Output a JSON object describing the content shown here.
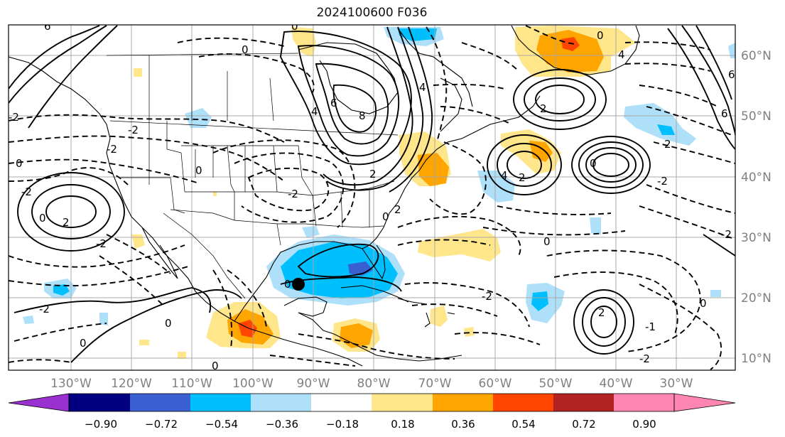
{
  "title": "2024100600 F036",
  "map": {
    "longitude_labels": [
      "130°W",
      "120°W",
      "110°W",
      "100°W",
      "90°W",
      "80°W",
      "70°W",
      "60°W",
      "50°W",
      "40°W",
      "30°W"
    ],
    "latitude_labels": [
      "60°N",
      "50°N",
      "40°N",
      "30°N",
      "20°N",
      "10°N"
    ],
    "contour_labels": [
      "2",
      "4",
      "6",
      "8",
      "0",
      "0",
      "-2",
      "-2",
      "2",
      "4",
      "2",
      "0",
      "-2",
      "6",
      "0",
      "-2",
      "0",
      "-2",
      "2",
      "-2",
      "0",
      "0",
      "4",
      "6",
      "6",
      "0",
      "-2",
      "2",
      "0",
      "-1",
      "4",
      "-2",
      "0",
      "2",
      "0",
      "0",
      "2",
      "-2",
      "-2",
      "0",
      "-2",
      "0"
    ],
    "storm_marker": "black-dot",
    "grid": true,
    "gridline_color": "#a0a0a0",
    "land_outline_color": "#000000"
  },
  "colorbar": {
    "ticks": [
      "−0.90",
      "−0.72",
      "−0.54",
      "−0.36",
      "−0.18",
      "0.18",
      "0.36",
      "0.54",
      "0.72",
      "0.90"
    ],
    "colors": [
      "#9b30d0",
      "#000080",
      "#3a5fd0",
      "#00bfff",
      "#afe0fa",
      "#ffffff",
      "#ffe68a",
      "#ffa500",
      "#ff4500",
      "#b22222",
      "#ff85b3"
    ],
    "extend": "both"
  }
}
